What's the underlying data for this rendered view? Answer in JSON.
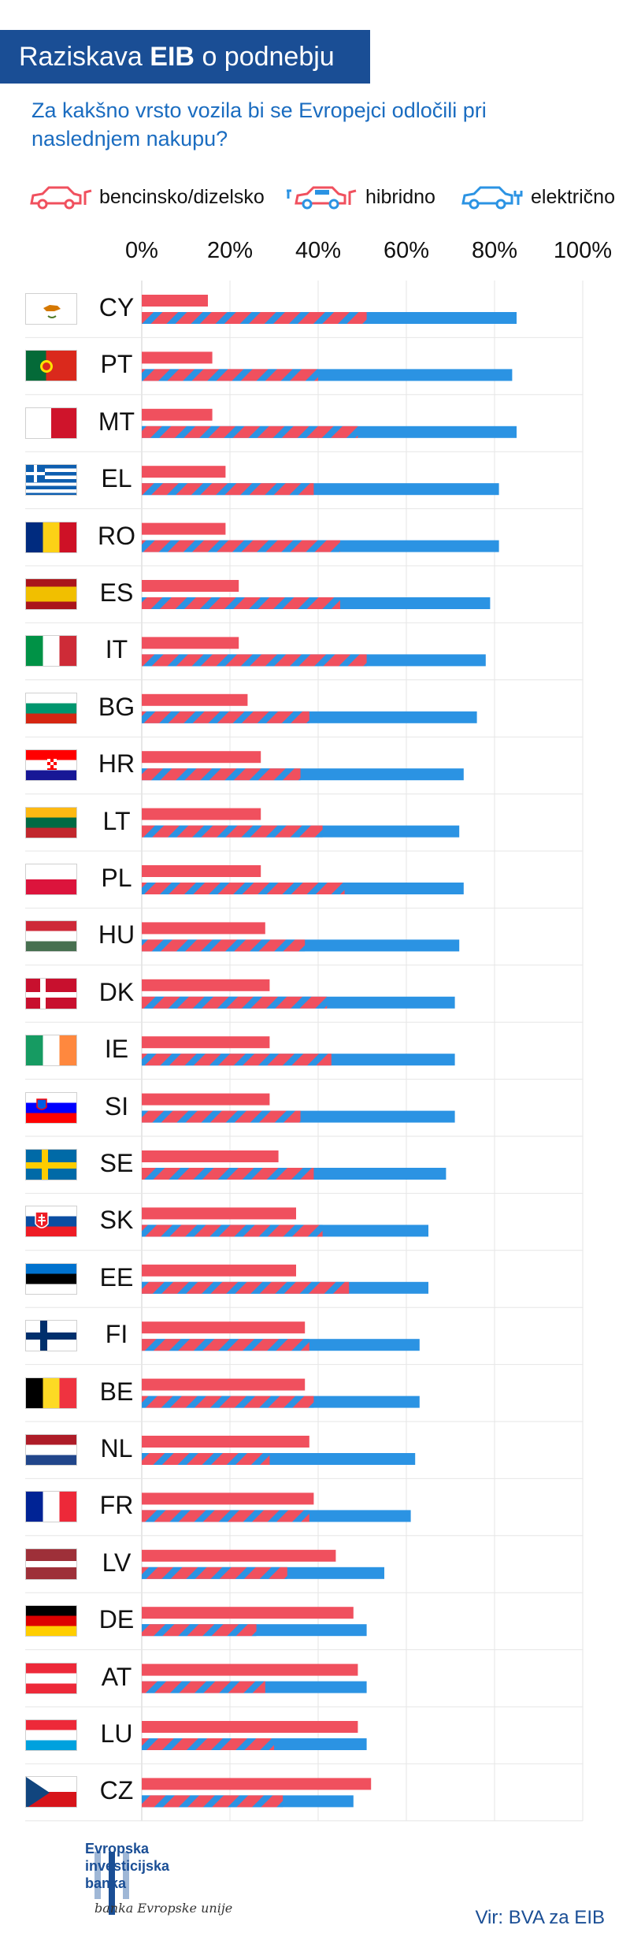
{
  "header": {
    "title_prefix": "Raziskava",
    "title_bold": "EIB",
    "title_suffix": "o podnebju",
    "subtitle": "Za kakšno vrsto vozila bi se Evropejci odločili pri naslednjem nakupu?"
  },
  "legend": [
    {
      "label": "bencinsko/dizelsko",
      "icon": "gasoline-car-icon",
      "color": "#f0505e"
    },
    {
      "label": "hibridno",
      "icon": "hybrid-car-icon",
      "color": "#f0505e/#2b93e3"
    },
    {
      "label": "električno",
      "icon": "electric-car-icon",
      "color": "#2b93e3"
    }
  ],
  "chart_data": {
    "type": "bar",
    "orientation": "horizontal",
    "xlim": [
      0,
      100
    ],
    "x_ticks": [
      "0%",
      "20%",
      "40%",
      "60%",
      "80%",
      "100%"
    ],
    "categories": [
      "CY",
      "PT",
      "MT",
      "EL",
      "RO",
      "ES",
      "IT",
      "BG",
      "HR",
      "LT",
      "PL",
      "HU",
      "DK",
      "IE",
      "SI",
      "SE",
      "SK",
      "EE",
      "FI",
      "BE",
      "NL",
      "FR",
      "LV",
      "DE",
      "AT",
      "LU",
      "CZ"
    ],
    "series": [
      {
        "name": "bencinsko/dizelsko",
        "color": "#f0505e",
        "values": [
          15,
          16,
          16,
          19,
          19,
          22,
          22,
          24,
          27,
          27,
          27,
          28,
          29,
          29,
          29,
          31,
          35,
          35,
          37,
          37,
          38,
          39,
          44,
          48,
          49,
          49,
          52
        ]
      },
      {
        "name": "hibridno",
        "color": "#f0505e/#2b93e3",
        "values": [
          51,
          40,
          49,
          39,
          45,
          45,
          51,
          38,
          36,
          41,
          46,
          37,
          42,
          43,
          36,
          39,
          41,
          47,
          38,
          39,
          29,
          38,
          33,
          26,
          28,
          30,
          32
        ]
      },
      {
        "name": "električno",
        "color": "#2b93e3",
        "values": [
          85,
          84,
          85,
          81,
          81,
          79,
          78,
          76,
          73,
          72,
          73,
          72,
          71,
          71,
          71,
          69,
          65,
          65,
          63,
          63,
          62,
          61,
          55,
          51,
          51,
          51,
          48
        ]
      }
    ]
  },
  "flags": [
    "cyprus",
    "portugal",
    "malta",
    "greece",
    "romania",
    "spain",
    "italy",
    "bulgaria",
    "croatia",
    "lithuania",
    "poland",
    "hungary",
    "denmark",
    "ireland",
    "slovenia",
    "sweden",
    "slovakia",
    "estonia",
    "finland",
    "belgium",
    "netherlands",
    "france",
    "latvia",
    "germany",
    "austria",
    "luxembourg",
    "czechia"
  ],
  "footer": {
    "logo_line1": "Evropska",
    "logo_line2": "investicijska",
    "logo_line3": "banka",
    "slogan": "banka Evropske unije",
    "source": "Vir: BVA za EIB"
  }
}
